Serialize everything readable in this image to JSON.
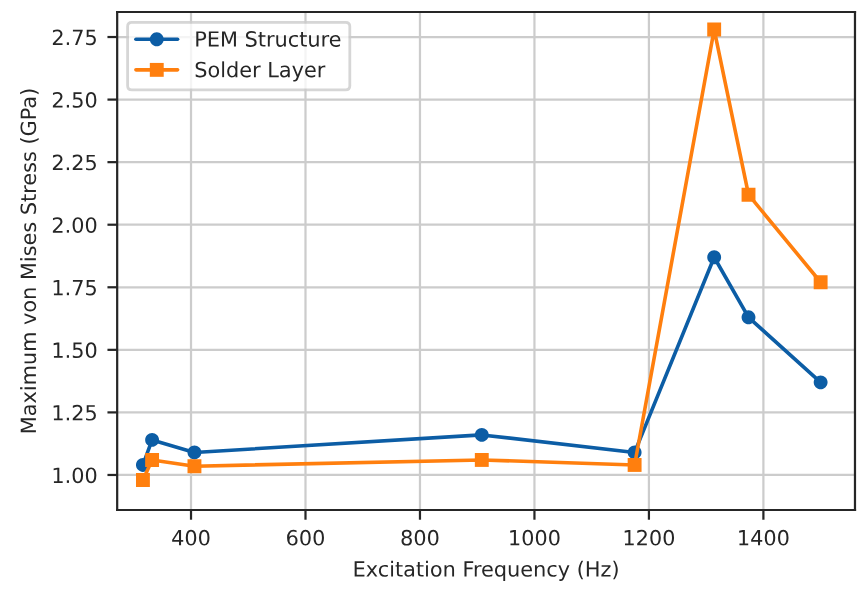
{
  "chart_data": {
    "type": "line",
    "xlabel": "Excitation Frequency (Hz)",
    "ylabel": "Maximum von Mises Stress (GPa)",
    "x": [
      316,
      332,
      406,
      908,
      1175,
      1314,
      1374,
      1500
    ],
    "series": [
      {
        "name": "PEM Structure",
        "color": "#0c5da5",
        "marker": "circle",
        "values": [
          1.04,
          1.14,
          1.09,
          1.16,
          1.09,
          1.87,
          1.63,
          1.37
        ]
      },
      {
        "name": "Solder Layer",
        "color": "#ff7f0e",
        "marker": "square",
        "values": [
          0.98,
          1.06,
          1.035,
          1.06,
          1.04,
          2.78,
          2.12,
          1.77
        ]
      }
    ],
    "xlim": [
      271,
      1560
    ],
    "ylim": [
      0.86,
      2.85
    ],
    "xticks": [
      400,
      600,
      800,
      1000,
      1200,
      1400
    ],
    "yticks": [
      {
        "value": 1.0,
        "label": "1.00"
      },
      {
        "value": 1.25,
        "label": "1.25"
      },
      {
        "value": 1.5,
        "label": "1.50"
      },
      {
        "value": 1.75,
        "label": "1.75"
      },
      {
        "value": 2.0,
        "label": "2.00"
      },
      {
        "value": 2.25,
        "label": "2.25"
      },
      {
        "value": 2.5,
        "label": "2.50"
      },
      {
        "value": 2.75,
        "label": "2.75"
      }
    ],
    "grid": true,
    "legend": "top left",
    "line_style": "solid"
  }
}
